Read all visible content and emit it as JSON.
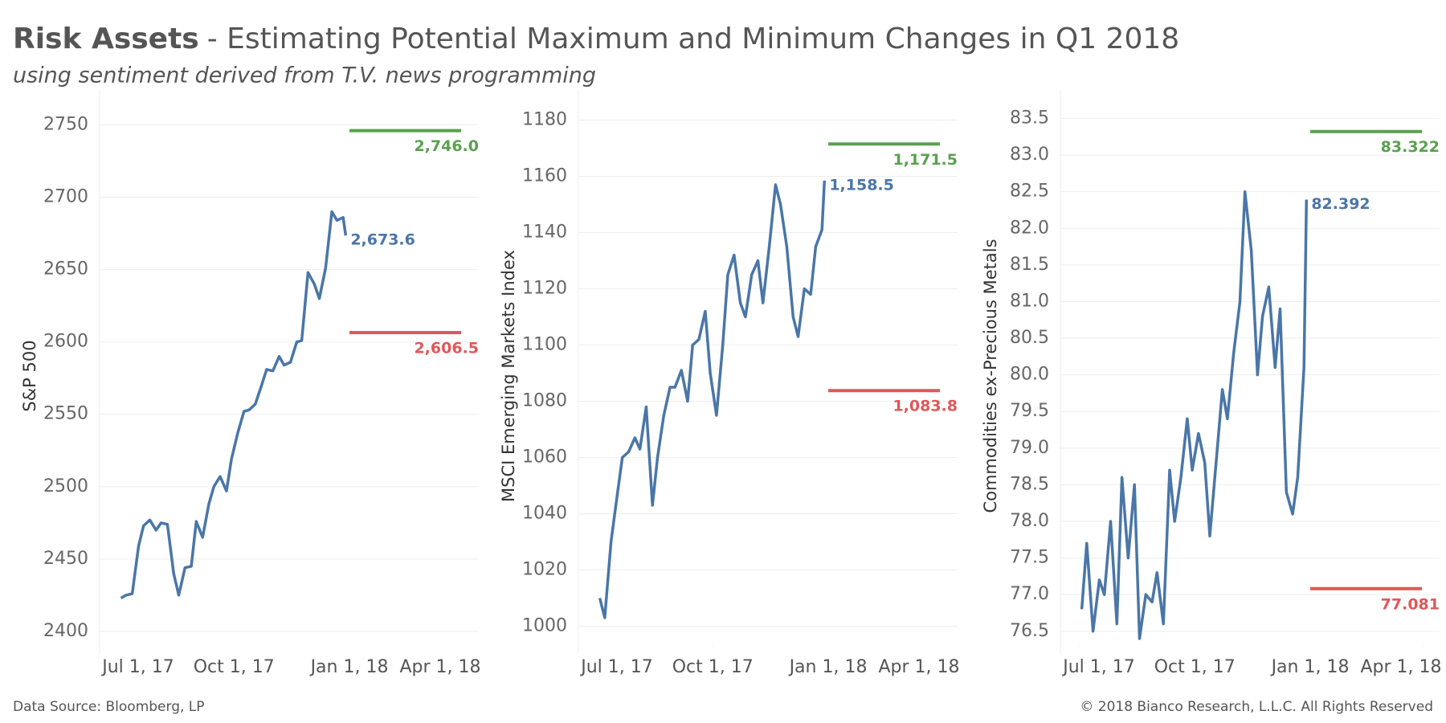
{
  "header": {
    "title_lead": "Risk Assets",
    "title": "- Estimating Potential Maximum and Minimum Changes in Q1 2018",
    "subtitle": "using sentiment derived from T.V. news programming"
  },
  "footer": {
    "source": "Data Source: Bloomberg, LP",
    "copyright": "© 2018 Bianco Research, L.L.C. All Rights Reserved"
  },
  "chart_data": [
    {
      "type": "line",
      "y_label": "S&P 500",
      "x": [
        "2017-07-03",
        "2017-07-07",
        "2017-07-12",
        "2017-07-17",
        "2017-07-21",
        "2017-07-26",
        "2017-07-31",
        "2017-08-04",
        "2017-08-09",
        "2017-08-14",
        "2017-08-18",
        "2017-08-23",
        "2017-08-28",
        "2017-09-01",
        "2017-09-06",
        "2017-09-11",
        "2017-09-15",
        "2017-09-20",
        "2017-09-25",
        "2017-09-29",
        "2017-10-04",
        "2017-10-09",
        "2017-10-13",
        "2017-10-18",
        "2017-10-23",
        "2017-10-27",
        "2017-11-01",
        "2017-11-06",
        "2017-11-10",
        "2017-11-15",
        "2017-11-20",
        "2017-11-24",
        "2017-11-29",
        "2017-12-04",
        "2017-12-08",
        "2017-12-13",
        "2017-12-18",
        "2017-12-22",
        "2017-12-27",
        "2017-12-29"
      ],
      "series": [
        {
          "color": "#4a76a8",
          "values": [
            2423,
            2425,
            2426,
            2459,
            2473,
            2477,
            2470,
            2475,
            2474,
            2440,
            2425,
            2444,
            2445,
            2476,
            2465,
            2488,
            2500,
            2507,
            2497,
            2519,
            2537,
            2552,
            2553,
            2557,
            2570,
            2581,
            2580,
            2590,
            2584,
            2586,
            2600,
            2601,
            2648,
            2640,
            2630,
            2651,
            2690,
            2684,
            2686,
            2673.6
          ],
          "end_label": "2,673.6"
        }
      ],
      "max": {
        "value": 2746.0,
        "label": "2,746.0",
        "color": "#59a14f"
      },
      "min": {
        "value": 2606.5,
        "label": "2,606.5",
        "color": "#e15759"
      },
      "forecast_range": [
        "2018-01-01",
        "2018-03-31"
      ],
      "xlim": [
        "2017-06-16",
        "2018-04-14"
      ],
      "xticks": [
        {
          "value": "2017-07-01",
          "label": "Jul 1, 17"
        },
        {
          "value": "2017-10-01",
          "label": "Oct 1, 17"
        },
        {
          "value": "2018-01-01",
          "label": "Jan 1, 18"
        },
        {
          "value": "2018-04-01",
          "label": "Apr 1, 18"
        }
      ],
      "ylim": [
        2390,
        2763
      ],
      "yticks": [
        2400,
        2450,
        2500,
        2550,
        2600,
        2650,
        2700,
        2750
      ],
      "grid": true
    },
    {
      "type": "line",
      "y_label": "MSCI Emerging Markets Index",
      "x": [
        "2017-07-03",
        "2017-07-07",
        "2017-07-12",
        "2017-07-17",
        "2017-07-21",
        "2017-07-26",
        "2017-07-31",
        "2017-08-04",
        "2017-08-09",
        "2017-08-14",
        "2017-08-18",
        "2017-08-23",
        "2017-08-28",
        "2017-09-01",
        "2017-09-06",
        "2017-09-11",
        "2017-09-15",
        "2017-09-20",
        "2017-09-25",
        "2017-09-29",
        "2017-10-04",
        "2017-10-09",
        "2017-10-13",
        "2017-10-18",
        "2017-10-23",
        "2017-10-27",
        "2017-11-01",
        "2017-11-06",
        "2017-11-10",
        "2017-11-15",
        "2017-11-20",
        "2017-11-24",
        "2017-11-29",
        "2017-12-04",
        "2017-12-08",
        "2017-12-13",
        "2017-12-18",
        "2017-12-22",
        "2017-12-27",
        "2017-12-29"
      ],
      "series": [
        {
          "color": "#4a76a8",
          "values": [
            1010,
            1003,
            1030,
            1047,
            1060,
            1062,
            1067,
            1063,
            1078,
            1043,
            1060,
            1075,
            1085,
            1085,
            1091,
            1080,
            1100,
            1102,
            1112,
            1090,
            1075,
            1100,
            1125,
            1132,
            1115,
            1110,
            1125,
            1130,
            1115,
            1135,
            1157,
            1150,
            1135,
            1110,
            1103,
            1120,
            1118,
            1135,
            1141,
            1158.5
          ],
          "end_label": "1,158.5"
        }
      ],
      "max": {
        "value": 1171.5,
        "label": "1,171.5",
        "color": "#59a14f"
      },
      "min": {
        "value": 1083.8,
        "label": "1,083.8",
        "color": "#e15759"
      },
      "forecast_range": [
        "2018-01-01",
        "2018-03-31"
      ],
      "xlim": [
        "2017-06-16",
        "2018-04-14"
      ],
      "xticks": [
        {
          "value": "2017-07-01",
          "label": "Jul 1, 17"
        },
        {
          "value": "2017-10-01",
          "label": "Oct 1, 17"
        },
        {
          "value": "2018-01-01",
          "label": "Jan 1, 18"
        },
        {
          "value": "2018-04-01",
          "label": "Apr 1, 18"
        }
      ],
      "ylim": [
        993,
        1185
      ],
      "yticks": [
        1000,
        1020,
        1040,
        1060,
        1080,
        1100,
        1120,
        1140,
        1160,
        1180
      ],
      "grid": true
    },
    {
      "type": "line",
      "y_label": "Commodities ex-Precious Metals",
      "x": [
        "2017-07-03",
        "2017-07-07",
        "2017-07-12",
        "2017-07-17",
        "2017-07-21",
        "2017-07-26",
        "2017-07-31",
        "2017-08-04",
        "2017-08-09",
        "2017-08-14",
        "2017-08-18",
        "2017-08-23",
        "2017-08-28",
        "2017-09-01",
        "2017-09-06",
        "2017-09-11",
        "2017-09-15",
        "2017-09-20",
        "2017-09-25",
        "2017-09-29",
        "2017-10-04",
        "2017-10-09",
        "2017-10-13",
        "2017-10-18",
        "2017-10-23",
        "2017-10-27",
        "2017-11-01",
        "2017-11-06",
        "2017-11-10",
        "2017-11-15",
        "2017-11-20",
        "2017-11-24",
        "2017-11-29",
        "2017-12-04",
        "2017-12-08",
        "2017-12-13",
        "2017-12-18",
        "2017-12-22",
        "2017-12-27",
        "2017-12-29"
      ],
      "series": [
        {
          "color": "#4a76a8",
          "values": [
            76.8,
            77.7,
            76.5,
            77.2,
            77.0,
            78.0,
            76.6,
            78.6,
            77.5,
            78.5,
            76.4,
            77.0,
            76.9,
            77.3,
            76.6,
            78.7,
            78.0,
            78.6,
            79.4,
            78.7,
            79.2,
            78.8,
            77.8,
            78.8,
            79.8,
            79.4,
            80.3,
            81.0,
            82.5,
            81.7,
            80.0,
            80.8,
            81.2,
            80.1,
            80.9,
            78.4,
            78.1,
            78.6,
            80.1,
            82.392
          ],
          "end_label": "82.392"
        }
      ],
      "max": {
        "value": 83.322,
        "label": "83.322",
        "color": "#59a14f"
      },
      "min": {
        "value": 77.081,
        "label": "77.081",
        "color": "#e15759"
      },
      "forecast_range": [
        "2018-01-01",
        "2018-03-31"
      ],
      "xlim": [
        "2017-06-16",
        "2018-04-14"
      ],
      "xticks": [
        {
          "value": "2017-07-01",
          "label": "Jul 1, 17"
        },
        {
          "value": "2017-10-01",
          "label": "Oct 1, 17"
        },
        {
          "value": "2018-01-01",
          "label": "Jan 1, 18"
        },
        {
          "value": "2018-04-01",
          "label": "Apr 1, 18"
        }
      ],
      "ylim": [
        76.3,
        83.67
      ],
      "yticks": [
        76.5,
        {
          "value": 77,
          "label": "77.0"
        },
        77.5,
        {
          "value": 78,
          "label": "78.0"
        },
        78.5,
        {
          "value": 79,
          "label": "79.0"
        },
        79.5,
        {
          "value": 80,
          "label": "80.0"
        },
        80.5,
        {
          "value": 81,
          "label": "81.0"
        },
        81.5,
        {
          "value": 82,
          "label": "82.0"
        },
        82.5,
        {
          "value": 83,
          "label": "83.0"
        },
        83.5
      ],
      "grid": true
    }
  ]
}
